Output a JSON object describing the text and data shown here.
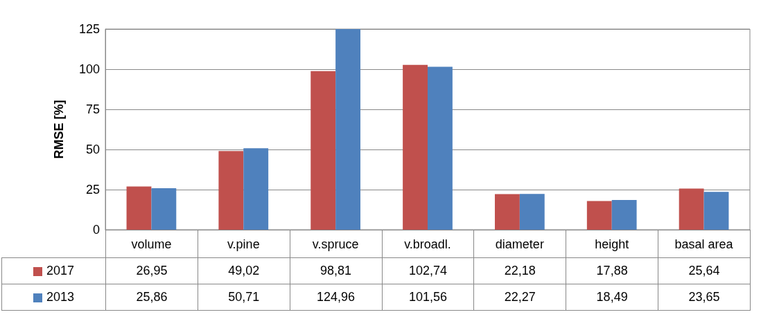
{
  "chart_data": {
    "type": "bar",
    "ylabel": "RMSE [%]",
    "categories": [
      "volume",
      "v.pine",
      "v.spruce",
      "v.broadl.",
      "diameter",
      "height",
      "basal area"
    ],
    "series": [
      {
        "name": "2017",
        "color": "#c0504d",
        "values": [
          26.95,
          49.02,
          98.81,
          102.74,
          22.18,
          17.88,
          25.64
        ],
        "value_labels": [
          "26,95",
          "49,02",
          "98,81",
          "102,74",
          "22,18",
          "17,88",
          "25,64"
        ]
      },
      {
        "name": "2013",
        "color": "#4f81bd",
        "values": [
          25.86,
          50.71,
          124.96,
          101.56,
          22.27,
          18.49,
          23.65
        ],
        "value_labels": [
          "25,86",
          "50,71",
          "124,96",
          "101,56",
          "22,27",
          "18,49",
          "23,65"
        ]
      }
    ],
    "ylim": [
      0,
      125
    ],
    "yticks": [
      0,
      25,
      50,
      75,
      100,
      125
    ],
    "grid": "y",
    "legend": "bottom"
  }
}
